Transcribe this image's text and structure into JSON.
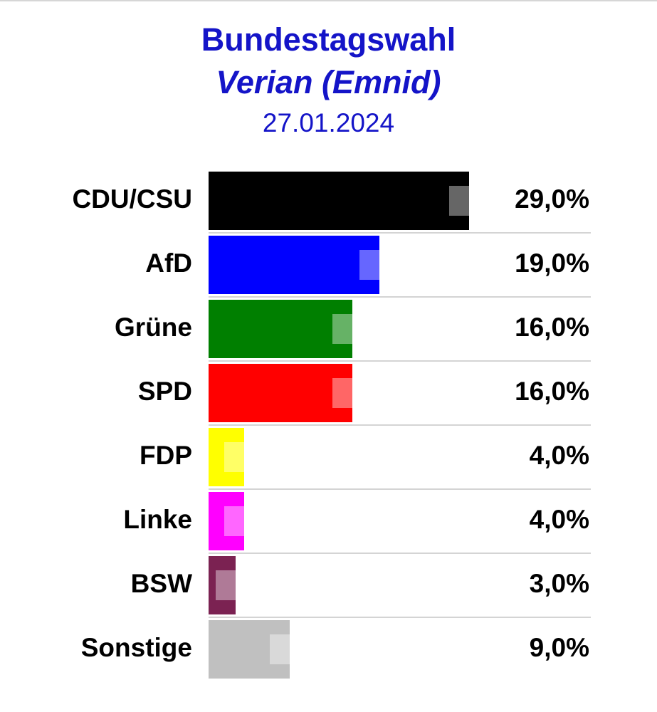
{
  "chart_data": {
    "type": "bar",
    "orientation": "horizontal",
    "title": "Bundestagswahl",
    "subtitle": "Verian (Emnid)",
    "date": "27.01.2024",
    "xlim": [
      0,
      29
    ],
    "categories": [
      "CDU/CSU",
      "AfD",
      "Grüne",
      "SPD",
      "FDP",
      "Linke",
      "BSW",
      "Sonstige"
    ],
    "values": [
      29.0,
      19.0,
      16.0,
      16.0,
      4.0,
      4.0,
      3.0,
      9.0
    ],
    "value_labels": [
      "29,0%",
      "19,0%",
      "16,0%",
      "16,0%",
      "4,0%",
      "4,0%",
      "3,0%",
      "9,0%"
    ],
    "colors": [
      "#000000",
      "#0000ff",
      "#007f00",
      "#ff0000",
      "#ffff00",
      "#ff00ff",
      "#7b2252",
      "#c0c0c0"
    ],
    "grid": false,
    "legend": "none"
  },
  "colors": {
    "title": "#1414c8",
    "separator": "#d4d4d4"
  }
}
